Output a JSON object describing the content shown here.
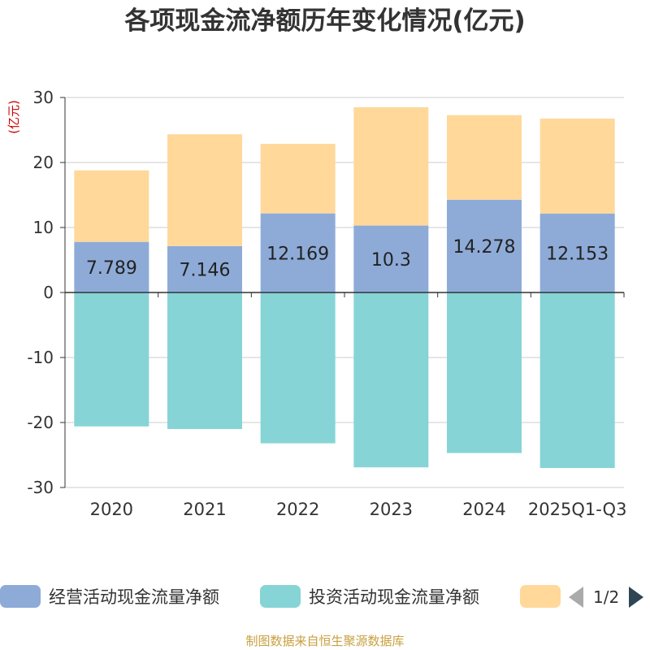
{
  "title": "各项现金流净额历年变化情况(亿元)",
  "source": "制图数据来自恒生聚源数据库",
  "legend": {
    "items": [
      {
        "label": "经营活动现金流量净额",
        "color": "#8eabd8"
      },
      {
        "label": "投资活动现金流量净额",
        "color": "#86d4d6"
      },
      {
        "label": "",
        "color": "#ffd89a"
      }
    ],
    "page": "1/2"
  },
  "chart_data": {
    "type": "bar",
    "stacked": true,
    "title": "各项现金流净额历年变化情况(亿元)",
    "ylabel": "(亿元)",
    "ylabel_color": "#cc0000",
    "ylim": [
      -30,
      30
    ],
    "yticks": [
      30,
      20,
      10,
      0,
      -10,
      -20,
      -30
    ],
    "grid": true,
    "categories": [
      "2020",
      "2021",
      "2022",
      "2023",
      "2024",
      "2025Q1-Q3"
    ],
    "series": [
      {
        "name": "经营活动现金流量净额",
        "color": "#8eabd8",
        "values": [
          7.789,
          7.146,
          12.169,
          10.3,
          14.278,
          12.153
        ],
        "show_labels": true
      },
      {
        "name": "投资活动现金流量净额",
        "color": "#86d4d6",
        "values": [
          -20.6,
          -21.0,
          -23.2,
          -26.9,
          -24.7,
          -27.0
        ],
        "show_labels": false
      },
      {
        "name": "",
        "color": "#ffd89a",
        "values": [
          11.0,
          17.2,
          10.7,
          18.2,
          13.0,
          14.6
        ],
        "show_labels": false
      }
    ]
  }
}
